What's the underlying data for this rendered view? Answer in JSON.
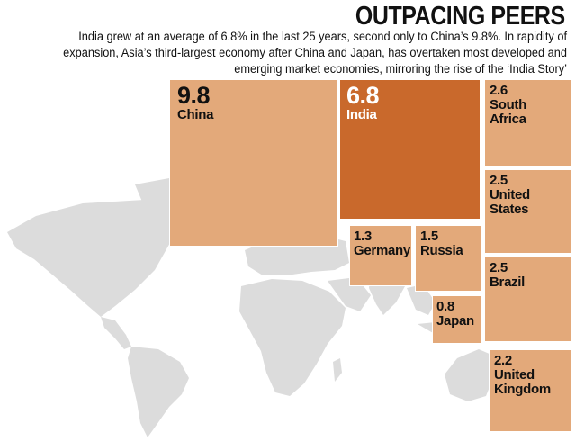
{
  "title": "OUTPACING PEERS",
  "subtitle": "India grew at an average of 6.8% in the last 25 years, second only to China’s 9.8%. In rapidity of expansion, Asia’s third-largest economy after China and Japan, has overtaken most developed and emerging market economies, mirroring the rise of the ‘India Story’",
  "colors": {
    "highlight": "#c9692c",
    "box": "#e3a97a",
    "map": "#dcdcdc"
  },
  "chart_data": {
    "type": "treemap",
    "highlight": "India",
    "items": [
      {
        "label": "China",
        "value": 9.8,
        "value_text": "9.8"
      },
      {
        "label": "India",
        "value": 6.8,
        "value_text": "6.8"
      },
      {
        "label": "South Africa",
        "value": 2.6,
        "value_text": "2.6"
      },
      {
        "label": "United States",
        "value": 2.5,
        "value_text": "2.5"
      },
      {
        "label": "Brazil",
        "value": 2.5,
        "value_text": "2.5"
      },
      {
        "label": "United Kingdom",
        "value": 2.2,
        "value_text": "2.2"
      },
      {
        "label": "Germany",
        "value": 1.3,
        "value_text": "1.3"
      },
      {
        "label": "Russia",
        "value": 1.5,
        "value_text": "1.5"
      },
      {
        "label": "Japan",
        "value": 0.8,
        "value_text": "0.8"
      }
    ]
  }
}
